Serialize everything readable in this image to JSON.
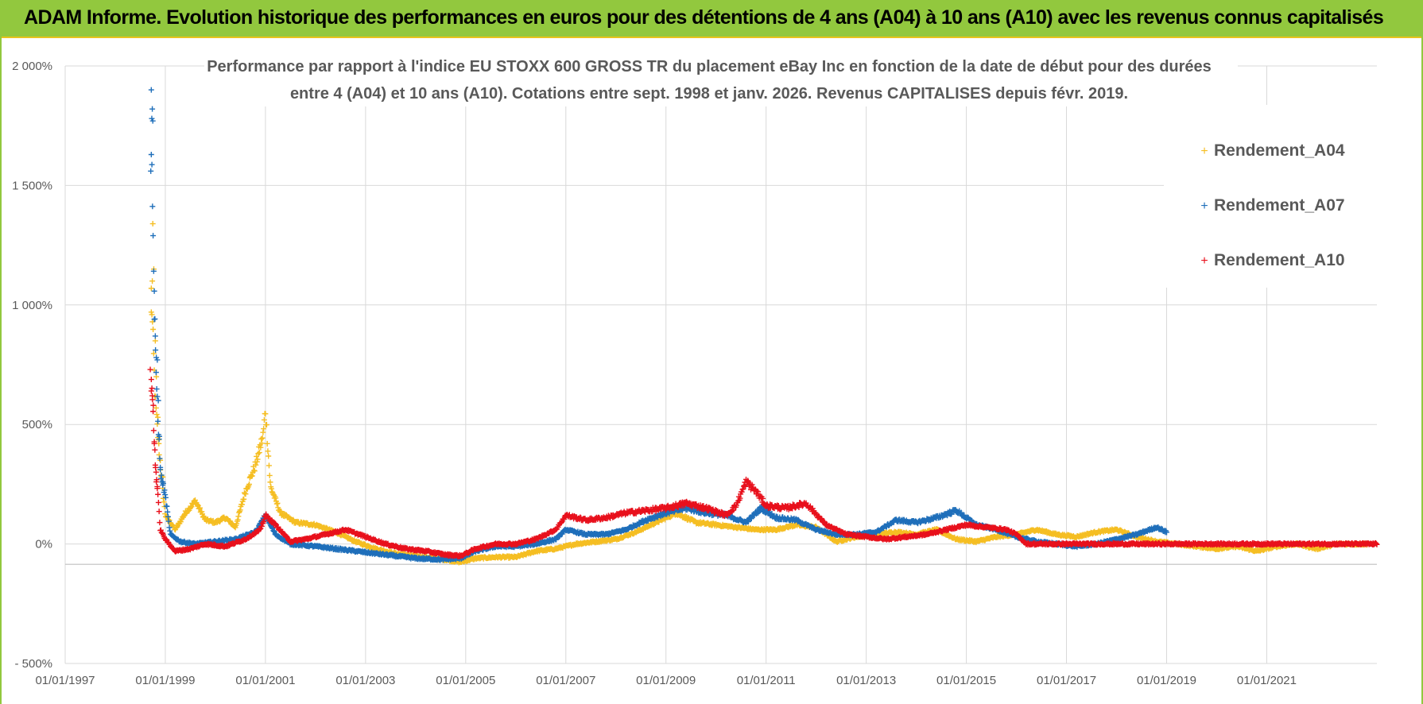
{
  "header": {
    "title": "ADAM Informe. Evolution historique des performances en euros pour des détentions de 4 ans (A04) à 10 ans (A10) avec les revenus connus capitalisés"
  },
  "colors": {
    "header_bg": "#92c83e",
    "header_border": "#e8c31c",
    "series_A04": "#f5be23",
    "series_A07": "#1f6fba",
    "series_A10": "#e8101c"
  },
  "chart_data": {
    "type": "scatter",
    "title_lines": [
      "Performance par rapport à l'indice EU STOXX 600 GROSS TR  du placement eBay Inc en fonction de la date de début pour des durées",
      "entre 4 (A04) et 10 ans (A10).  Cotations entre sept. 1998 et janv. 2026. Revenus CAPITALISES depuis févr. 2019."
    ],
    "xlabel": "",
    "ylabel": "",
    "x_unit": "year",
    "xlim": [
      1997.0,
      2023.2
    ],
    "ylim": [
      -500,
      2000
    ],
    "y_ticks": [
      -500,
      0,
      500,
      1000,
      1500,
      2000
    ],
    "y_tick_labels": [
      "- 500%",
      "0%",
      "500%",
      "1 000%",
      "1 500%",
      "2 000%"
    ],
    "x_ticks": [
      1997,
      1999,
      2001,
      2003,
      2005,
      2007,
      2009,
      2011,
      2013,
      2015,
      2017,
      2019,
      2021
    ],
    "x_tick_labels": [
      "01/01/1997",
      "01/01/1999",
      "01/01/2001",
      "01/01/2003",
      "01/01/2005",
      "01/01/2007",
      "01/01/2009",
      "01/01/2011",
      "01/01/2013",
      "01/01/2015",
      "01/01/2017",
      "01/01/2019",
      "01/01/2021"
    ],
    "grid": true,
    "legend_position": "top-right",
    "series": [
      {
        "name": "Rendement_A04",
        "color": "#f5be23",
        "spikes": [
          [
            1998.75,
            1340
          ],
          [
            1998.77,
            1150
          ],
          [
            1998.74,
            1100
          ],
          [
            1998.72,
            970
          ],
          [
            1998.8,
            850
          ],
          [
            1998.82,
            700
          ],
          [
            1998.85,
            530
          ],
          [
            1998.87,
            420
          ],
          [
            1998.9,
            350
          ],
          [
            1998.95,
            280
          ]
        ],
        "points": [
          [
            1998.72,
            1050
          ],
          [
            1998.8,
            600
          ],
          [
            1998.9,
            320
          ],
          [
            1999.0,
            120
          ],
          [
            1999.2,
            60
          ],
          [
            1999.4,
            130
          ],
          [
            1999.6,
            180
          ],
          [
            1999.8,
            100
          ],
          [
            2000.0,
            90
          ],
          [
            2000.2,
            110
          ],
          [
            2000.4,
            70
          ],
          [
            2000.6,
            220
          ],
          [
            2000.8,
            330
          ],
          [
            2000.95,
            450
          ],
          [
            2001.0,
            560
          ],
          [
            2001.1,
            240
          ],
          [
            2001.3,
            130
          ],
          [
            2001.6,
            90
          ],
          [
            2002.0,
            80
          ],
          [
            2002.4,
            50
          ],
          [
            2002.8,
            10
          ],
          [
            2003.2,
            -20
          ],
          [
            2003.6,
            -40
          ],
          [
            2004.0,
            -50
          ],
          [
            2004.4,
            -60
          ],
          [
            2004.9,
            -75
          ],
          [
            2005.2,
            -60
          ],
          [
            2005.6,
            -55
          ],
          [
            2006.0,
            -55
          ],
          [
            2006.4,
            -30
          ],
          [
            2006.8,
            -20
          ],
          [
            2007.2,
            0
          ],
          [
            2007.6,
            10
          ],
          [
            2008.0,
            20
          ],
          [
            2008.4,
            50
          ],
          [
            2008.8,
            90
          ],
          [
            2009.2,
            130
          ],
          [
            2009.6,
            90
          ],
          [
            2010.0,
            80
          ],
          [
            2010.4,
            70
          ],
          [
            2010.8,
            60
          ],
          [
            2011.2,
            60
          ],
          [
            2011.6,
            80
          ],
          [
            2012.0,
            70
          ],
          [
            2012.2,
            40
          ],
          [
            2012.4,
            10
          ],
          [
            2012.8,
            30
          ],
          [
            2013.2,
            40
          ],
          [
            2013.6,
            50
          ],
          [
            2014.0,
            40
          ],
          [
            2014.4,
            60
          ],
          [
            2014.8,
            20
          ],
          [
            2015.2,
            10
          ],
          [
            2015.6,
            30
          ],
          [
            2016.0,
            40
          ],
          [
            2016.4,
            60
          ],
          [
            2016.8,
            40
          ],
          [
            2017.2,
            30
          ],
          [
            2017.6,
            50
          ],
          [
            2018.0,
            60
          ],
          [
            2018.4,
            30
          ],
          [
            2018.8,
            10
          ],
          [
            2019.2,
            0
          ],
          [
            2019.6,
            -10
          ],
          [
            2020.0,
            -20
          ],
          [
            2020.4,
            -10
          ],
          [
            2020.8,
            -30
          ],
          [
            2021.2,
            -10
          ],
          [
            2021.6,
            0
          ],
          [
            2022.0,
            -20
          ],
          [
            2022.4,
            0
          ],
          [
            2023.0,
            0
          ]
        ]
      },
      {
        "name": "Rendement_A07",
        "color": "#1f6fba",
        "spikes": [
          [
            1998.72,
            1900
          ],
          [
            1998.74,
            1820
          ],
          [
            1998.73,
            1780
          ],
          [
            1998.75,
            1770
          ],
          [
            1998.71,
            1560
          ],
          [
            1998.78,
            940
          ],
          [
            1998.8,
            870
          ],
          [
            1998.82,
            780
          ],
          [
            1998.84,
            770
          ],
          [
            1998.86,
            600
          ],
          [
            1998.88,
            450
          ],
          [
            1998.9,
            320
          ],
          [
            1998.95,
            260
          ]
        ],
        "points": [
          [
            1998.72,
            1700
          ],
          [
            1998.8,
            800
          ],
          [
            1998.9,
            300
          ],
          [
            1999.0,
            200
          ],
          [
            1999.1,
            40
          ],
          [
            1999.3,
            10
          ],
          [
            1999.6,
            0
          ],
          [
            2000.0,
            10
          ],
          [
            2000.4,
            20
          ],
          [
            2000.8,
            50
          ],
          [
            2001.0,
            120
          ],
          [
            2001.2,
            40
          ],
          [
            2001.5,
            0
          ],
          [
            2002.0,
            -10
          ],
          [
            2002.4,
            -20
          ],
          [
            2002.8,
            -30
          ],
          [
            2003.2,
            -40
          ],
          [
            2003.6,
            -50
          ],
          [
            2004.0,
            -60
          ],
          [
            2004.5,
            -65
          ],
          [
            2004.9,
            -60
          ],
          [
            2005.2,
            -30
          ],
          [
            2005.6,
            -10
          ],
          [
            2006.0,
            -10
          ],
          [
            2006.4,
            0
          ],
          [
            2006.8,
            20
          ],
          [
            2007.0,
            60
          ],
          [
            2007.4,
            40
          ],
          [
            2007.8,
            40
          ],
          [
            2008.2,
            60
          ],
          [
            2008.6,
            100
          ],
          [
            2009.0,
            130
          ],
          [
            2009.4,
            150
          ],
          [
            2009.8,
            130
          ],
          [
            2010.2,
            120
          ],
          [
            2010.6,
            90
          ],
          [
            2010.9,
            150
          ],
          [
            2011.2,
            110
          ],
          [
            2011.6,
            100
          ],
          [
            2012.0,
            60
          ],
          [
            2012.4,
            40
          ],
          [
            2012.8,
            40
          ],
          [
            2013.2,
            50
          ],
          [
            2013.6,
            100
          ],
          [
            2014.0,
            90
          ],
          [
            2014.4,
            110
          ],
          [
            2014.8,
            140
          ],
          [
            2015.2,
            80
          ],
          [
            2015.6,
            60
          ],
          [
            2016.0,
            30
          ],
          [
            2016.4,
            10
          ],
          [
            2016.8,
            0
          ],
          [
            2017.2,
            -10
          ],
          [
            2017.6,
            0
          ],
          [
            2018.0,
            20
          ],
          [
            2018.4,
            40
          ],
          [
            2018.8,
            70
          ],
          [
            2019.0,
            50
          ]
        ]
      },
      {
        "name": "Rendement_A10",
        "color": "#e8101c",
        "spikes": [
          [
            1998.7,
            730
          ],
          [
            1998.72,
            640
          ],
          [
            1998.74,
            620
          ],
          [
            1998.76,
            580
          ],
          [
            1998.78,
            420
          ],
          [
            1998.8,
            330
          ],
          [
            1998.82,
            260
          ],
          [
            1998.84,
            240
          ]
        ],
        "points": [
          [
            1998.72,
            700
          ],
          [
            1998.8,
            350
          ],
          [
            1998.9,
            60
          ],
          [
            1999.0,
            20
          ],
          [
            1999.2,
            -30
          ],
          [
            1999.5,
            -20
          ],
          [
            1999.8,
            0
          ],
          [
            2000.2,
            -10
          ],
          [
            2000.6,
            20
          ],
          [
            2000.9,
            60
          ],
          [
            2001.0,
            120
          ],
          [
            2001.2,
            80
          ],
          [
            2001.5,
            10
          ],
          [
            2001.8,
            20
          ],
          [
            2002.2,
            40
          ],
          [
            2002.6,
            60
          ],
          [
            2003.0,
            30
          ],
          [
            2003.4,
            0
          ],
          [
            2003.8,
            -20
          ],
          [
            2004.2,
            -30
          ],
          [
            2004.6,
            -45
          ],
          [
            2004.9,
            -50
          ],
          [
            2005.2,
            -20
          ],
          [
            2005.6,
            0
          ],
          [
            2006.0,
            0
          ],
          [
            2006.4,
            20
          ],
          [
            2006.8,
            60
          ],
          [
            2007.0,
            120
          ],
          [
            2007.4,
            100
          ],
          [
            2007.8,
            110
          ],
          [
            2008.2,
            130
          ],
          [
            2008.6,
            140
          ],
          [
            2009.0,
            150
          ],
          [
            2009.4,
            170
          ],
          [
            2009.8,
            150
          ],
          [
            2010.2,
            120
          ],
          [
            2010.4,
            160
          ],
          [
            2010.6,
            260
          ],
          [
            2010.8,
            220
          ],
          [
            2011.0,
            160
          ],
          [
            2011.4,
            150
          ],
          [
            2011.8,
            170
          ],
          [
            2012.2,
            80
          ],
          [
            2012.6,
            40
          ],
          [
            2013.0,
            30
          ],
          [
            2013.4,
            20
          ],
          [
            2013.8,
            30
          ],
          [
            2014.2,
            40
          ],
          [
            2014.6,
            60
          ],
          [
            2015.0,
            80
          ],
          [
            2015.4,
            70
          ],
          [
            2015.8,
            60
          ],
          [
            2016.0,
            40
          ],
          [
            2016.2,
            0
          ],
          [
            2017.0,
            0
          ],
          [
            2018.0,
            0
          ],
          [
            2019.0,
            0
          ],
          [
            2020.0,
            0
          ],
          [
            2021.0,
            0
          ],
          [
            2022.0,
            0
          ],
          [
            2023.2,
            0
          ]
        ]
      }
    ]
  }
}
